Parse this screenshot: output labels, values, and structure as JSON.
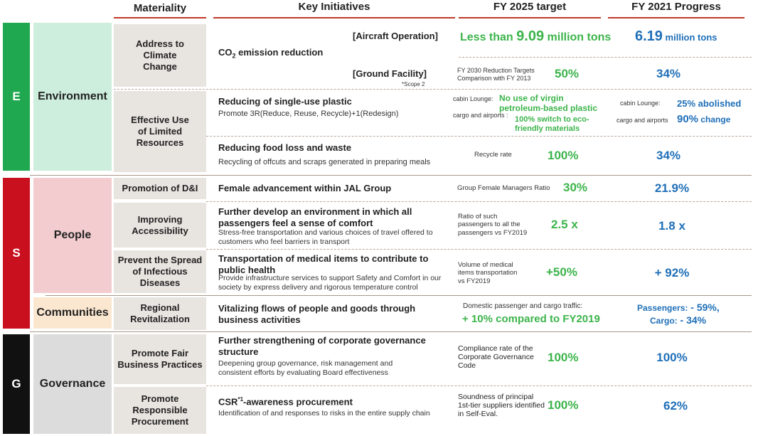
{
  "headers": {
    "materiality": "Materiality",
    "key_initiatives": "Key Initiatives",
    "target": "FY 2025 target",
    "progress": "FY 2021 Progress"
  },
  "categories": {
    "e": {
      "letter": "E",
      "name": "Environment",
      "color": "#1fa84f",
      "bg": "#cdeedd"
    },
    "s": {
      "letter": "S",
      "name": "People",
      "color": "#c8101e",
      "bg": "#f2cccf"
    },
    "s2": {
      "name": "Communities",
      "bg": "#fbe7cf"
    },
    "g": {
      "letter": "G",
      "name": "Governance",
      "color": "#111111",
      "bg": "#dcdcdc"
    }
  },
  "materiality": {
    "climate": "Address to Climate Change",
    "resources": "Effective Use of Limited Resources",
    "dni": "Promotion of D&I",
    "access": "Improving Accessibility",
    "infectious": "Prevent the Spread of Infectious Diseases",
    "regional": "Regional Revitalization",
    "fair": "Promote Fair Business Practices",
    "procurement": "Promote Responsible Procurement"
  },
  "rows": {
    "co2": {
      "title_main": "CO",
      "title_sub": "2",
      "title_rest": " emission reduction",
      "aircraft_label": "[Aircraft Operation]",
      "aircraft_target_pre": "Less than ",
      "aircraft_target_num": "9.09",
      "aircraft_target_post": " million tons",
      "aircraft_progress_num": "6.19",
      "aircraft_progress_post": " million tons",
      "ground_label": "[Ground Facility]",
      "scope_note": "*Scope 2",
      "ground_metric": "FY 2030 Reduction Targets Comparison with FY 2013",
      "ground_target": "50%",
      "ground_progress": "34%"
    },
    "plastic": {
      "title": "Reducing of single-use plastic",
      "subtitle": "Promote 3R(Reduce, Reuse, Recycle)+1(Redesign)",
      "lounge_label": "cabin Lounge:",
      "lounge_target": "No use of virgin petroleum-based plastic",
      "cargo_label": "cargo and airports :",
      "cargo_target": "100% switch to eco-friendly materials",
      "prog_lounge_label": "cabin Lounge:",
      "prog_lounge_value": "25% abolished",
      "prog_cargo_label": "cargo and airports",
      "prog_cargo_num": "90%",
      "prog_cargo_post": " change"
    },
    "food": {
      "title": "Reducing food loss and waste",
      "subtitle": "Recycling of offcuts and scraps generated in preparing meals",
      "metric": "Recycle rate",
      "target": "100%",
      "progress": "34%"
    },
    "female": {
      "title": "Female advancement within JAL Group",
      "metric": "Group Female Managers Ratio",
      "target": "30%",
      "progress": "21.9%"
    },
    "comfort": {
      "title": "Further develop an environment in which all passengers feel a sense of comfort",
      "subtitle": "Stress-free transportation and various choices of travel offered to customers who feel barriers in transport",
      "metric": "Ratio of such passengers to all the passengers vs FY2019",
      "target": "2.5 x",
      "progress": "1.8 x"
    },
    "medical": {
      "title": "Transportation of medical items to contribute to public health",
      "subtitle": "Provide infrastructure services to support Safety and Comfort in our society by express delivery and rigorous temperature control",
      "metric": "Volume of medical items transportation vs FY2019",
      "target": "+50%",
      "progress": "+ 92%"
    },
    "regional": {
      "title": "Vitalizing flows of people and goods through business activities",
      "metric": "Domestic passenger and cargo traffic:",
      "target": "+ 10% compared to FY2019",
      "progress_pass_label": "Passengers:",
      "progress_pass_value": " - 59%,",
      "progress_cargo_label": "Cargo:",
      "progress_cargo_value": " - 34%"
    },
    "governance": {
      "title": "Further strengthening of corporate governance structure",
      "subtitle": "Deepening group governance, risk management and consistent efforts by evaluating Board effectiveness",
      "metric": "Compliance rate of the Corporate Governance Code",
      "target": "100%",
      "progress": "100%"
    },
    "csr": {
      "title_pre": "CSR",
      "title_sup": "*1",
      "title_post": "-awareness procurement",
      "subtitle": "Identification of and responses to risks in the entire supply chain",
      "metric": "Soundness of principal 1st-tier suppliers identified in Self-Eval.",
      "target": "100%",
      "progress": "62%"
    }
  }
}
